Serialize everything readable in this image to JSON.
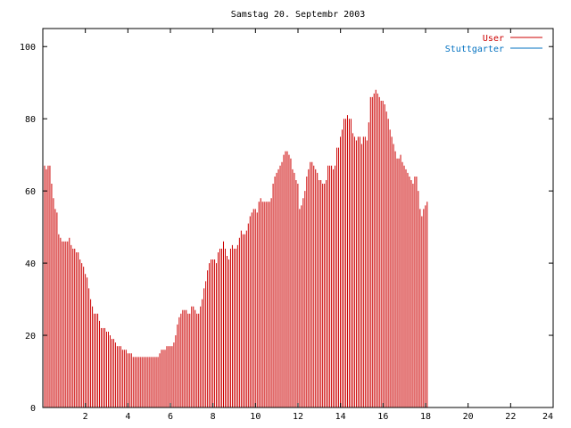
{
  "chart_data": {
    "type": "bar",
    "title": "Samstag 20. Septembr 2003",
    "xlabel": "",
    "ylabel": "",
    "xlim": [
      0,
      24
    ],
    "ylim": [
      0,
      105
    ],
    "x_ticks": [
      {
        "value": 2,
        "label": "2"
      },
      {
        "value": 4,
        "label": "4"
      },
      {
        "value": 6,
        "label": "6"
      },
      {
        "value": 8,
        "label": "8"
      },
      {
        "value": 10,
        "label": "10"
      },
      {
        "value": 12,
        "label": "12"
      },
      {
        "value": 14,
        "label": "14"
      },
      {
        "value": 16,
        "label": "16"
      },
      {
        "value": 18,
        "label": "18"
      },
      {
        "value": 20,
        "label": "20"
      },
      {
        "value": 22,
        "label": "22"
      },
      {
        "value": 24,
        "label": "24"
      }
    ],
    "y_ticks": [
      {
        "value": 0,
        "label": "0"
      },
      {
        "value": 20,
        "label": "20"
      },
      {
        "value": 40,
        "label": "40"
      },
      {
        "value": 60,
        "label": "60"
      },
      {
        "value": 80,
        "label": "80"
      },
      {
        "value": 100,
        "label": "100"
      }
    ],
    "legend_position": "top-right",
    "grid": false,
    "series": [
      {
        "name": "User",
        "color": "#cc0000",
        "x_start": 0,
        "x_step": 0.0833,
        "values": [
          67,
          67,
          66,
          67,
          67,
          62,
          58,
          55,
          54,
          48,
          47,
          46,
          46,
          46,
          46,
          47,
          45,
          44,
          44,
          43,
          43,
          41,
          40,
          39,
          37,
          36,
          33,
          30,
          28,
          26,
          26,
          26,
          24,
          22,
          22,
          22,
          21,
          21,
          20,
          19,
          19,
          18,
          17,
          17,
          17,
          16,
          16,
          16,
          15,
          15,
          15,
          14,
          14,
          14,
          14,
          14,
          14,
          14,
          14,
          14,
          14,
          14,
          14,
          14,
          14,
          14,
          15,
          16,
          16,
          16,
          17,
          17,
          17,
          17,
          18,
          20,
          23,
          25,
          26,
          27,
          27,
          27,
          26,
          26,
          28,
          28,
          27,
          26,
          26,
          28,
          30,
          33,
          35,
          38,
          40,
          41,
          41,
          41,
          40,
          43,
          44,
          44,
          46,
          44,
          42,
          41,
          44,
          45,
          44,
          44,
          45,
          47,
          49,
          48,
          48,
          49,
          51,
          53,
          54,
          55,
          55,
          54,
          57,
          58,
          57,
          57,
          57,
          57,
          57,
          58,
          62,
          64,
          65,
          66,
          67,
          68,
          70,
          71,
          71,
          70,
          69,
          66,
          65,
          63,
          62,
          55,
          56,
          58,
          60,
          64,
          66,
          68,
          68,
          67,
          66,
          65,
          63,
          63,
          62,
          62,
          63,
          67,
          67,
          67,
          66,
          67,
          72,
          72,
          75,
          77,
          80,
          80,
          81,
          80,
          80,
          76,
          75,
          74,
          75,
          75,
          73,
          75,
          75,
          74,
          79,
          86,
          86,
          87,
          88,
          87,
          86,
          85,
          85,
          84,
          82,
          80,
          77,
          75,
          73,
          71,
          69,
          69,
          70,
          68,
          67,
          66,
          65,
          64,
          63,
          62,
          64,
          64,
          60,
          55,
          53,
          55,
          56,
          57
        ]
      },
      {
        "name": "Stuttgarter",
        "color": "#0070c0",
        "x_start": 0,
        "x_step": 0.0833,
        "values": [
          0,
          0,
          0,
          0,
          0,
          0,
          0,
          0,
          0,
          0,
          0,
          0,
          0,
          0,
          0,
          0,
          0,
          0,
          0,
          0,
          0,
          0,
          0,
          0,
          0,
          0,
          0,
          0,
          0,
          0,
          0,
          0,
          0,
          0,
          0,
          0,
          0,
          0,
          0,
          0,
          0,
          0,
          0,
          0,
          0,
          0,
          0,
          0,
          0,
          0,
          0,
          0,
          0,
          0,
          0,
          0,
          0,
          0,
          0,
          0,
          0,
          0,
          0,
          0,
          0,
          0,
          0,
          0,
          0,
          0,
          0,
          0,
          0,
          0,
          0,
          0,
          0,
          0,
          0,
          0,
          0,
          0,
          0,
          0,
          0,
          0,
          0,
          0,
          0,
          0,
          0,
          0,
          0,
          0,
          0,
          0,
          0,
          0,
          0,
          0,
          0,
          0,
          0,
          0,
          0,
          0,
          0,
          0,
          0,
          0,
          0,
          0,
          0,
          0,
          0,
          0,
          0,
          0,
          0,
          0,
          0,
          0,
          0,
          0,
          0,
          0,
          0,
          0,
          0,
          0,
          0,
          0,
          0,
          0,
          0,
          0,
          0,
          0,
          0,
          0,
          0,
          0,
          0,
          0,
          0,
          0,
          0,
          0,
          0,
          0,
          0,
          0,
          0,
          0,
          0,
          0,
          0,
          0,
          0,
          0,
          0,
          0,
          0,
          0,
          0,
          0,
          0,
          0,
          0,
          0,
          0,
          0,
          0,
          0,
          0,
          0,
          0,
          0,
          0,
          0,
          0,
          0,
          0,
          0,
          0,
          0,
          0,
          0,
          0,
          0,
          0,
          0,
          0,
          0,
          0,
          0,
          0,
          0,
          0,
          0,
          0,
          0,
          0,
          0,
          0,
          0,
          0,
          0,
          0,
          0,
          0,
          0,
          0,
          0,
          0,
          0,
          0,
          0,
          0,
          0,
          0,
          0
        ]
      }
    ]
  }
}
